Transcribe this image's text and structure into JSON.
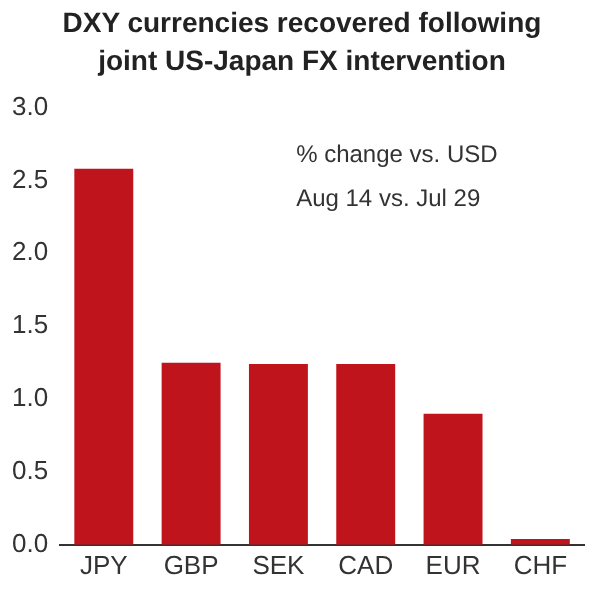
{
  "chart_data": {
    "type": "bar",
    "title": "DXY currencies recovered following joint US-Japan FX intervention",
    "categories": [
      "JPY",
      "GBP",
      "SEK",
      "CAD",
      "EUR",
      "CHF"
    ],
    "values": [
      2.58,
      1.25,
      1.24,
      1.24,
      0.9,
      0.04
    ],
    "color": "#c0141c",
    "ylim": [
      0,
      3
    ],
    "yticks": [
      {
        "value": 0,
        "label": "0.0"
      },
      {
        "value": 0.5,
        "label": "0.5"
      },
      {
        "value": 1,
        "label": "1.0"
      },
      {
        "value": 1.5,
        "label": "1.5"
      },
      {
        "value": 2,
        "label": "2.0"
      },
      {
        "value": 2.5,
        "label": "2.5"
      },
      {
        "value": 3,
        "label": "3.0"
      }
    ],
    "annotations": [
      "% change vs. USD",
      "Aug 14 vs. Jul 29"
    ]
  }
}
